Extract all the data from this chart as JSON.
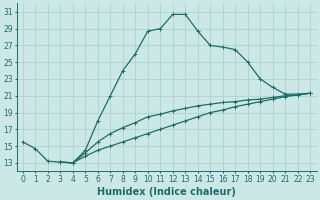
{
  "title": "",
  "xlabel": "Humidex (Indice chaleur)",
  "background_color": "#cce8e6",
  "grid_color": "#aacfcc",
  "line_color": "#1a6e6a",
  "xlim": [
    -0.5,
    23.5
  ],
  "ylim": [
    12.0,
    32.0
  ],
  "xticks": [
    0,
    1,
    2,
    3,
    4,
    5,
    6,
    7,
    8,
    9,
    10,
    11,
    12,
    13,
    14,
    15,
    16,
    17,
    18,
    19,
    20,
    21,
    22,
    23
  ],
  "yticks": [
    13,
    15,
    17,
    19,
    21,
    23,
    25,
    27,
    29,
    31
  ],
  "series1": [
    [
      0,
      15.5
    ],
    [
      1,
      14.7
    ],
    [
      2,
      13.2
    ],
    [
      3,
      13.1
    ],
    [
      4,
      13.0
    ],
    [
      5,
      14.5
    ],
    [
      6,
      18.0
    ],
    [
      7,
      21.0
    ],
    [
      8,
      24.0
    ],
    [
      9,
      26.0
    ],
    [
      10,
      28.7
    ],
    [
      11,
      29.0
    ],
    [
      12,
      30.7
    ],
    [
      13,
      30.7
    ],
    [
      14,
      28.7
    ],
    [
      15,
      27.0
    ],
    [
      16,
      26.8
    ],
    [
      17,
      26.5
    ],
    [
      18,
      25.0
    ],
    [
      19,
      23.0
    ],
    [
      20,
      22.0
    ],
    [
      21,
      21.2
    ],
    [
      22,
      21.2
    ],
    [
      23,
      21.3
    ]
  ],
  "series2": [
    [
      3,
      13.1
    ],
    [
      4,
      13.0
    ],
    [
      5,
      14.2
    ],
    [
      6,
      15.5
    ],
    [
      7,
      16.5
    ],
    [
      8,
      17.2
    ],
    [
      9,
      17.8
    ],
    [
      10,
      18.5
    ],
    [
      11,
      18.8
    ],
    [
      12,
      19.2
    ],
    [
      13,
      19.5
    ],
    [
      14,
      19.8
    ],
    [
      15,
      20.0
    ],
    [
      16,
      20.2
    ],
    [
      17,
      20.3
    ],
    [
      18,
      20.5
    ],
    [
      19,
      20.6
    ],
    [
      20,
      20.8
    ],
    [
      21,
      21.0
    ],
    [
      22,
      21.1
    ],
    [
      23,
      21.3
    ]
  ],
  "series3": [
    [
      3,
      13.1
    ],
    [
      4,
      13.0
    ],
    [
      5,
      13.8
    ],
    [
      6,
      14.5
    ],
    [
      7,
      15.0
    ],
    [
      8,
      15.5
    ],
    [
      9,
      16.0
    ],
    [
      10,
      16.5
    ],
    [
      11,
      17.0
    ],
    [
      12,
      17.5
    ],
    [
      13,
      18.0
    ],
    [
      14,
      18.5
    ],
    [
      15,
      19.0
    ],
    [
      16,
      19.3
    ],
    [
      17,
      19.7
    ],
    [
      18,
      20.0
    ],
    [
      19,
      20.3
    ],
    [
      20,
      20.6
    ],
    [
      21,
      20.9
    ],
    [
      22,
      21.1
    ],
    [
      23,
      21.3
    ]
  ],
  "font_size_label": 7,
  "font_size_tick": 5.5
}
